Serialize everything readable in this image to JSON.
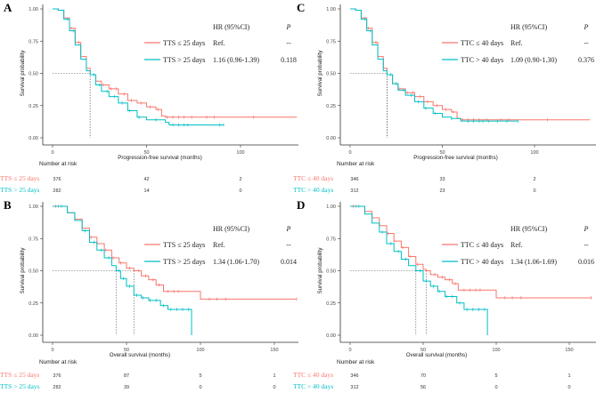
{
  "colors": {
    "group1": "#F8766D",
    "group2": "#00BFC4"
  },
  "chart_data": [
    {
      "panel": "A",
      "type": "line",
      "subtype": "kaplan-meier",
      "xlabel": "Progression-free survival (months)",
      "ylabel": "Survival probability",
      "xticks": [
        0,
        50,
        100
      ],
      "yticks": [
        "0.00",
        "0.25",
        "0.50",
        "0.75",
        "1.00"
      ],
      "xlim": [
        0,
        130
      ],
      "ylim": [
        0,
        1
      ],
      "legend": {
        "header_hr": "HR (95%CI)",
        "header_p": "P"
      },
      "series": [
        {
          "name": "TTS ≤ 25 days",
          "hr": "Ref.",
          "p": "--",
          "median": 20,
          "points": [
            [
              0,
              1
            ],
            [
              3,
              0.99
            ],
            [
              6,
              0.93
            ],
            [
              9,
              0.85
            ],
            [
              12,
              0.74
            ],
            [
              15,
              0.63
            ],
            [
              18,
              0.54
            ],
            [
              20,
              0.49
            ],
            [
              23,
              0.44
            ],
            [
              26,
              0.41
            ],
            [
              30,
              0.38
            ],
            [
              35,
              0.34
            ],
            [
              40,
              0.29
            ],
            [
              45,
              0.27
            ],
            [
              50,
              0.24
            ],
            [
              55,
              0.22
            ],
            [
              58,
              0.17
            ],
            [
              60,
              0.16
            ],
            [
              130,
              0.16
            ]
          ],
          "censor": [
            10,
            14,
            27,
            31,
            34,
            38,
            42,
            47,
            52,
            56,
            61,
            64,
            67,
            70,
            74,
            82,
            86,
            107
          ]
        },
        {
          "name": "TTS > 25 days",
          "hr": "1.16 (0.96-1.39)",
          "p": "0.118",
          "median": 20,
          "points": [
            [
              0,
              1
            ],
            [
              3,
              0.99
            ],
            [
              6,
              0.92
            ],
            [
              9,
              0.83
            ],
            [
              12,
              0.72
            ],
            [
              15,
              0.61
            ],
            [
              18,
              0.52
            ],
            [
              20,
              0.49
            ],
            [
              23,
              0.41
            ],
            [
              26,
              0.36
            ],
            [
              30,
              0.32
            ],
            [
              35,
              0.27
            ],
            [
              40,
              0.21
            ],
            [
              45,
              0.16
            ],
            [
              50,
              0.14
            ],
            [
              60,
              0.12
            ],
            [
              62,
              0.1
            ],
            [
              91,
              0.1
            ]
          ],
          "censor": [
            8,
            11,
            22,
            25,
            29,
            33,
            37,
            41,
            46,
            55,
            64,
            67,
            70,
            72,
            89,
            91
          ]
        }
      ],
      "risk_title": "Number at risk",
      "risk_times": [
        0,
        50,
        100
      ],
      "risk": [
        [
          "376",
          "42",
          "2"
        ],
        [
          "282",
          "14",
          "0"
        ]
      ]
    },
    {
      "panel": "B",
      "type": "line",
      "subtype": "kaplan-meier",
      "xlabel": "Overall survival (months)",
      "ylabel": "Survival probability",
      "xticks": [
        0,
        50,
        100,
        150
      ],
      "yticks": [
        "0.00",
        "0.25",
        "0.50",
        "0.75",
        "1.00"
      ],
      "xlim": [
        0,
        165
      ],
      "ylim": [
        0,
        1
      ],
      "legend": {
        "header_hr": "HR (95%CI)",
        "header_p": "P"
      },
      "series": [
        {
          "name": "TTS ≤ 25 days",
          "hr": "Ref.",
          "p": "--",
          "median": 55,
          "points": [
            [
              0,
              1
            ],
            [
              5,
              1
            ],
            [
              10,
              0.95
            ],
            [
              15,
              0.9
            ],
            [
              20,
              0.83
            ],
            [
              25,
              0.76
            ],
            [
              30,
              0.71
            ],
            [
              35,
              0.66
            ],
            [
              40,
              0.6
            ],
            [
              45,
              0.56
            ],
            [
              50,
              0.52
            ],
            [
              55,
              0.5
            ],
            [
              60,
              0.46
            ],
            [
              65,
              0.43
            ],
            [
              70,
              0.39
            ],
            [
              75,
              0.34
            ],
            [
              100,
              0.34
            ],
            [
              100,
              0.28
            ],
            [
              165,
              0.28
            ]
          ],
          "censor": [
            2,
            4,
            26,
            30,
            36,
            41,
            46,
            52,
            58,
            63,
            68,
            72,
            78,
            82,
            85,
            106,
            111,
            117,
            165
          ]
        },
        {
          "name": "TTS > 25 days",
          "hr": "1.34 (1.06-1.70)",
          "p": "0.014",
          "median": 43,
          "points": [
            [
              0,
              1
            ],
            [
              5,
              1
            ],
            [
              10,
              0.95
            ],
            [
              15,
              0.89
            ],
            [
              20,
              0.81
            ],
            [
              25,
              0.72
            ],
            [
              30,
              0.66
            ],
            [
              35,
              0.6
            ],
            [
              40,
              0.54
            ],
            [
              43,
              0.5
            ],
            [
              46,
              0.44
            ],
            [
              50,
              0.38
            ],
            [
              55,
              0.31
            ],
            [
              60,
              0.29
            ],
            [
              65,
              0.27
            ],
            [
              72,
              0.27
            ],
            [
              73,
              0.23
            ],
            [
              78,
              0.2
            ],
            [
              94,
              0.2
            ],
            [
              94,
              0
            ]
          ],
          "censor": [
            6,
            22,
            28,
            33,
            38,
            45,
            48,
            52,
            57,
            61,
            66,
            70,
            75,
            80,
            84,
            88,
            92
          ]
        }
      ],
      "risk_title": "Number at risk",
      "risk_times": [
        0,
        50,
        100,
        150
      ],
      "risk": [
        [
          "376",
          "87",
          "5",
          "1"
        ],
        [
          "282",
          "39",
          "0",
          "0"
        ]
      ]
    },
    {
      "panel": "C",
      "type": "line",
      "subtype": "kaplan-meier",
      "xlabel": "Progression-free survival (months)",
      "ylabel": "Survival probability",
      "xticks": [
        0,
        50,
        100
      ],
      "yticks": [
        "0.00",
        "0.25",
        "0.50",
        "0.75",
        "1.00"
      ],
      "xlim": [
        0,
        130
      ],
      "ylim": [
        0,
        1
      ],
      "legend": {
        "header_hr": "HR (95%CI)",
        "header_p": "P"
      },
      "series": [
        {
          "name": "TTC ≤ 40 days",
          "hr": "Ref.",
          "p": "--",
          "median": 20,
          "points": [
            [
              0,
              1
            ],
            [
              3,
              0.99
            ],
            [
              6,
              0.93
            ],
            [
              9,
              0.85
            ],
            [
              12,
              0.74
            ],
            [
              15,
              0.63
            ],
            [
              18,
              0.54
            ],
            [
              20,
              0.49
            ],
            [
              23,
              0.42
            ],
            [
              26,
              0.38
            ],
            [
              30,
              0.35
            ],
            [
              35,
              0.32
            ],
            [
              40,
              0.28
            ],
            [
              45,
              0.25
            ],
            [
              50,
              0.22
            ],
            [
              55,
              0.2
            ],
            [
              58,
              0.15
            ],
            [
              60,
              0.14
            ],
            [
              130,
              0.14
            ]
          ],
          "censor": [
            10,
            14,
            27,
            31,
            34,
            38,
            42,
            47,
            52,
            56,
            61,
            64,
            67,
            70,
            74,
            82,
            86,
            107
          ]
        },
        {
          "name": "TTC > 40 days",
          "hr": "1.09 (0.90-1.30)",
          "p": "0.376",
          "median": 20,
          "points": [
            [
              0,
              1
            ],
            [
              3,
              0.99
            ],
            [
              6,
              0.92
            ],
            [
              9,
              0.83
            ],
            [
              12,
              0.72
            ],
            [
              15,
              0.61
            ],
            [
              18,
              0.52
            ],
            [
              20,
              0.49
            ],
            [
              23,
              0.42
            ],
            [
              26,
              0.37
            ],
            [
              30,
              0.33
            ],
            [
              35,
              0.28
            ],
            [
              40,
              0.23
            ],
            [
              45,
              0.19
            ],
            [
              50,
              0.16
            ],
            [
              55,
              0.15
            ],
            [
              60,
              0.13
            ],
            [
              91,
              0.13
            ]
          ],
          "censor": [
            8,
            11,
            22,
            25,
            29,
            33,
            37,
            41,
            46,
            55,
            64,
            67,
            70,
            72,
            75,
            80,
            85,
            91
          ]
        }
      ],
      "risk_title": "Number at risk",
      "risk_times": [
        0,
        50,
        100
      ],
      "risk": [
        [
          "346",
          "33",
          "2"
        ],
        [
          "312",
          "23",
          "0"
        ]
      ]
    },
    {
      "panel": "D",
      "type": "line",
      "subtype": "kaplan-meier",
      "xlabel": "Overall survival (months)",
      "ylabel": "Survival probability",
      "xticks": [
        0,
        50,
        100,
        150
      ],
      "yticks": [
        "0.00",
        "0.25",
        "0.50",
        "0.75",
        "1.00"
      ],
      "xlim": [
        0,
        165
      ],
      "ylim": [
        0,
        1
      ],
      "legend": {
        "header_hr": "HR (95%CI)",
        "header_p": "P"
      },
      "series": [
        {
          "name": "TTC ≤ 40 days",
          "hr": "Ref.",
          "p": "--",
          "median": 52,
          "points": [
            [
              0,
              1
            ],
            [
              5,
              1
            ],
            [
              10,
              0.96
            ],
            [
              15,
              0.91
            ],
            [
              20,
              0.85
            ],
            [
              25,
              0.79
            ],
            [
              30,
              0.73
            ],
            [
              35,
              0.68
            ],
            [
              40,
              0.61
            ],
            [
              45,
              0.55
            ],
            [
              50,
              0.51
            ],
            [
              52,
              0.5
            ],
            [
              55,
              0.47
            ],
            [
              60,
              0.45
            ],
            [
              65,
              0.43
            ],
            [
              70,
              0.4
            ],
            [
              74,
              0.35
            ],
            [
              100,
              0.35
            ],
            [
              100,
              0.29
            ],
            [
              165,
              0.29
            ]
          ],
          "censor": [
            2,
            4,
            26,
            30,
            36,
            41,
            46,
            52,
            58,
            63,
            68,
            72,
            78,
            82,
            86,
            89,
            106,
            111,
            117,
            165
          ]
        },
        {
          "name": "TTC > 40 days",
          "hr": "1.34 (1.06-1.69)",
          "p": "0.016",
          "median": 45,
          "points": [
            [
              0,
              1
            ],
            [
              5,
              1
            ],
            [
              10,
              0.94
            ],
            [
              15,
              0.87
            ],
            [
              20,
              0.8
            ],
            [
              25,
              0.71
            ],
            [
              30,
              0.65
            ],
            [
              35,
              0.59
            ],
            [
              40,
              0.54
            ],
            [
              45,
              0.5
            ],
            [
              50,
              0.42
            ],
            [
              55,
              0.38
            ],
            [
              60,
              0.34
            ],
            [
              65,
              0.3
            ],
            [
              72,
              0.3
            ],
            [
              73,
              0.25
            ],
            [
              78,
              0.2
            ],
            [
              94,
              0.2
            ],
            [
              94,
              0
            ]
          ],
          "censor": [
            6,
            22,
            28,
            33,
            38,
            45,
            48,
            52,
            57,
            61,
            66,
            70,
            75,
            80,
            84,
            88,
            92
          ]
        }
      ],
      "risk_title": "Number at risk",
      "risk_times": [
        0,
        50,
        100,
        150
      ],
      "risk": [
        [
          "346",
          "70",
          "5",
          "1"
        ],
        [
          "312",
          "56",
          "0",
          "0"
        ]
      ]
    }
  ]
}
